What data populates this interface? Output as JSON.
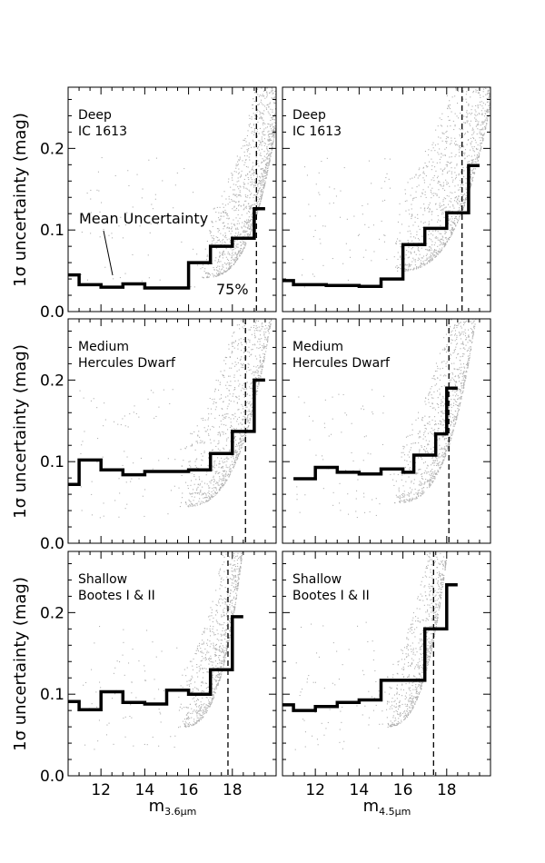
{
  "chart_data": {
    "type": "line",
    "ylabel": "1σ uncertainty (mag)",
    "xlabels": [
      {
        "base": "m",
        "sub": "3.6μm"
      },
      {
        "base": "m",
        "sub": "4.5μm"
      }
    ],
    "xlim": [
      10.5,
      20.0
    ],
    "ylim": [
      0.0,
      0.275
    ],
    "xticks": [
      12,
      14,
      16,
      18
    ],
    "yticks": [
      0.0,
      0.1,
      0.2
    ],
    "ytick_labels": [
      "0.0",
      "0.1",
      "0.2"
    ],
    "annotation_mean": "Mean Uncertainty",
    "annotation_percent": "75%",
    "colors": {
      "scatter": "#b0b0b0",
      "line": "#000000"
    },
    "panels": [
      {
        "row": 0,
        "col": 0,
        "label_lines": [
          "Deep",
          "IC 1613"
        ],
        "completeness_mag": 19.1,
        "scatter": {
          "x0": 16.5,
          "x1": 20.0,
          "base": 0.042,
          "k": 0.105,
          "spread": 0.06
        },
        "bins": [
          [
            10.5,
            11.0,
            0.045
          ],
          [
            11.0,
            12.0,
            0.033
          ],
          [
            12.0,
            13.0,
            0.03
          ],
          [
            13.0,
            14.0,
            0.034
          ],
          [
            14.0,
            16.0,
            0.029
          ],
          [
            16.0,
            17.0,
            0.06
          ],
          [
            17.0,
            18.0,
            0.08
          ],
          [
            18.0,
            19.0,
            0.09
          ],
          [
            19.0,
            19.5,
            0.126
          ]
        ]
      },
      {
        "row": 0,
        "col": 1,
        "label_lines": [
          "Deep",
          "IC 1613"
        ],
        "completeness_mag": 18.7,
        "scatter": {
          "x0": 15.5,
          "x1": 20.0,
          "base": 0.05,
          "k": 0.115,
          "spread": 0.08
        },
        "bins": [
          [
            10.5,
            11.0,
            0.038
          ],
          [
            11.0,
            12.5,
            0.033
          ],
          [
            12.5,
            14.0,
            0.032
          ],
          [
            14.0,
            15.0,
            0.031
          ],
          [
            15.0,
            16.0,
            0.04
          ],
          [
            16.0,
            17.0,
            0.082
          ],
          [
            17.0,
            18.0,
            0.102
          ],
          [
            18.0,
            19.0,
            0.121
          ],
          [
            19.0,
            19.5,
            0.179
          ]
        ]
      },
      {
        "row": 1,
        "col": 0,
        "label_lines": [
          "Medium",
          "Hercules Dwarf"
        ],
        "completeness_mag": 18.6,
        "scatter": {
          "x0": 15.5,
          "x1": 20.0,
          "base": 0.045,
          "k": 0.15,
          "spread": 0.07
        },
        "bins": [
          [
            10.5,
            11.0,
            0.072
          ],
          [
            11.0,
            12.0,
            0.102
          ],
          [
            12.0,
            13.0,
            0.09
          ],
          [
            13.0,
            14.0,
            0.084
          ],
          [
            14.0,
            16.0,
            0.088
          ],
          [
            16.0,
            17.0,
            0.09
          ],
          [
            17.0,
            18.0,
            0.11
          ],
          [
            18.0,
            19.0,
            0.137
          ],
          [
            19.0,
            19.5,
            0.2
          ]
        ]
      },
      {
        "row": 1,
        "col": 1,
        "label_lines": [
          "Medium",
          "Hercules Dwarf"
        ],
        "completeness_mag": 18.1,
        "scatter": {
          "x0": 15.5,
          "x1": 19.8,
          "base": 0.05,
          "k": 0.18,
          "spread": 0.06
        },
        "bins": [
          [
            11.0,
            12.0,
            0.079
          ],
          [
            12.0,
            13.0,
            0.093
          ],
          [
            13.0,
            14.0,
            0.087
          ],
          [
            14.0,
            15.0,
            0.085
          ],
          [
            15.0,
            16.0,
            0.091
          ],
          [
            16.0,
            16.5,
            0.087
          ],
          [
            16.5,
            17.5,
            0.108
          ],
          [
            17.5,
            18.0,
            0.134
          ],
          [
            18.0,
            18.5,
            0.19
          ]
        ]
      },
      {
        "row": 2,
        "col": 0,
        "label_lines": [
          "Shallow",
          "Bootes I & II"
        ],
        "completeness_mag": 17.8,
        "scatter": {
          "x0": 15.5,
          "x1": 19.0,
          "base": 0.06,
          "k": 0.2,
          "spread": 0.06
        },
        "bins": [
          [
            10.5,
            11.0,
            0.091
          ],
          [
            11.0,
            12.0,
            0.081
          ],
          [
            12.0,
            13.0,
            0.103
          ],
          [
            13.0,
            14.0,
            0.09
          ],
          [
            14.0,
            15.0,
            0.088
          ],
          [
            15.0,
            16.0,
            0.105
          ],
          [
            16.0,
            17.0,
            0.1
          ],
          [
            17.0,
            18.0,
            0.13
          ],
          [
            18.0,
            18.5,
            0.195
          ]
        ]
      },
      {
        "row": 2,
        "col": 1,
        "label_lines": [
          "Shallow",
          "Bootes I & II"
        ],
        "completeness_mag": 17.4,
        "scatter": {
          "x0": 15.0,
          "x1": 18.8,
          "base": 0.06,
          "k": 0.24,
          "spread": 0.06
        },
        "bins": [
          [
            10.5,
            11.0,
            0.087
          ],
          [
            11.0,
            12.0,
            0.08
          ],
          [
            12.0,
            13.0,
            0.085
          ],
          [
            13.0,
            14.0,
            0.09
          ],
          [
            14.0,
            15.0,
            0.093
          ],
          [
            15.0,
            16.0,
            0.117
          ],
          [
            16.0,
            17.0,
            0.117
          ],
          [
            17.0,
            18.0,
            0.18
          ],
          [
            18.0,
            18.5,
            0.234
          ]
        ]
      }
    ]
  }
}
